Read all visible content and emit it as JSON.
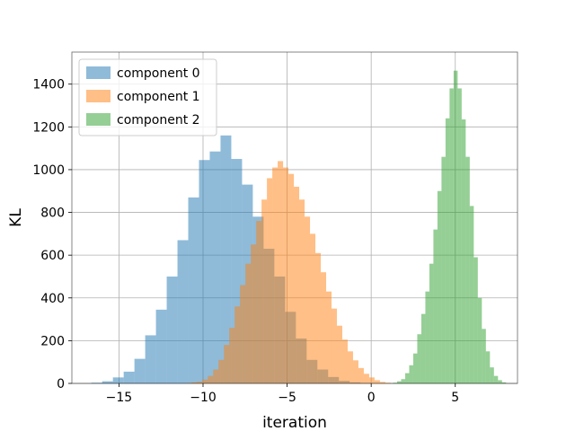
{
  "chart_data": {
    "type": "histogram",
    "title": "",
    "xlabel": "iteration",
    "ylabel": "KL",
    "xlim": [
      -17.8,
      8.7
    ],
    "ylim": [
      0,
      1550
    ],
    "xticks": [
      -15,
      -10,
      -5,
      0,
      5
    ],
    "xtick_labels": [
      "−15",
      "−10",
      "−5",
      "0",
      "5"
    ],
    "yticks": [
      0,
      200,
      400,
      600,
      800,
      1000,
      1200,
      1400
    ],
    "grid": true,
    "legend_position": "top-left",
    "series": [
      {
        "name": "component 0",
        "color": "#1f77b4",
        "alpha": 0.5,
        "bin_width": 0.64,
        "bin_start": -16.64,
        "counts": [
          3,
          10,
          28,
          55,
          115,
          225,
          345,
          500,
          670,
          870,
          1045,
          1085,
          1160,
          1050,
          930,
          780,
          630,
          500,
          335,
          210,
          110,
          65,
          30,
          12,
          5,
          2
        ]
      },
      {
        "name": "component 1",
        "color": "#ff7f0e",
        "alpha": 0.5,
        "bin_width": 0.32,
        "bin_start": -11.0,
        "counts": [
          2,
          5,
          8,
          18,
          35,
          65,
          110,
          180,
          260,
          360,
          460,
          560,
          650,
          760,
          860,
          960,
          1010,
          1040,
          1010,
          980,
          920,
          860,
          780,
          700,
          610,
          520,
          430,
          350,
          270,
          205,
          150,
          108,
          72,
          45,
          28,
          15,
          7,
          3
        ]
      },
      {
        "name": "component 2",
        "color": "#2ca02c",
        "alpha": 0.5,
        "bin_width": 0.24,
        "bin_start": 1.3,
        "counts": [
          3,
          10,
          20,
          48,
          85,
          140,
          230,
          325,
          430,
          560,
          720,
          900,
          1060,
          1240,
          1380,
          1463,
          1380,
          1235,
          1060,
          830,
          590,
          400,
          255,
          150,
          75,
          35,
          15,
          5
        ]
      }
    ]
  }
}
